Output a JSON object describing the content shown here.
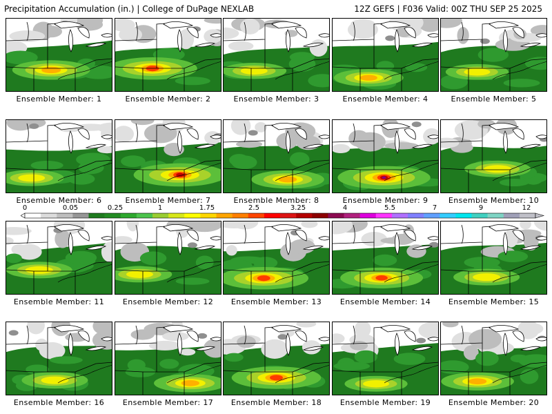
{
  "header": {
    "title": "Precipitation Accumulation (in.) | College of DuPage NEXLAB",
    "run_info": "12Z GEFS | F036 Valid: 00Z THU SEP 25 2025"
  },
  "members": [
    {
      "label": "Ensemble Member: 1",
      "peak": 2.3
    },
    {
      "label": "Ensemble Member: 2",
      "peak": 3.0
    },
    {
      "label": "Ensemble Member: 3",
      "peak": 1.5
    },
    {
      "label": "Ensemble Member: 4",
      "peak": 1.8
    },
    {
      "label": "Ensemble Member: 5",
      "peak": 1.4
    },
    {
      "label": "Ensemble Member: 6",
      "peak": 1.5
    },
    {
      "label": "Ensemble Member: 7",
      "peak": 3.3
    },
    {
      "label": "Ensemble Member: 8",
      "peak": 2.0
    },
    {
      "label": "Ensemble Member: 9",
      "peak": 4.2
    },
    {
      "label": "Ensemble Member: 10",
      "peak": 1.6
    },
    {
      "label": "Ensemble Member: 11",
      "peak": 1.6
    },
    {
      "label": "Ensemble Member: 12",
      "peak": 1.5
    },
    {
      "label": "Ensemble Member: 13",
      "peak": 3.0
    },
    {
      "label": "Ensemble Member: 14",
      "peak": 2.6
    },
    {
      "label": "Ensemble Member: 15",
      "peak": 1.6
    },
    {
      "label": "Ensemble Member: 16",
      "peak": 1.6
    },
    {
      "label": "Ensemble Member: 17",
      "peak": 2.0
    },
    {
      "label": "Ensemble Member: 18",
      "peak": 3.0
    },
    {
      "label": "Ensemble Member: 19",
      "peak": 1.4
    },
    {
      "label": "Ensemble Member: 20",
      "peak": 2.0
    }
  ],
  "colorbar": {
    "labels": [
      "0",
      "0.05",
      "0.25",
      "1",
      "1.75",
      "2.5",
      "3.25",
      "4",
      "5.5",
      "7",
      "9",
      "12"
    ],
    "colors": [
      "#ffffff",
      "#dcdcdc",
      "#bebebe",
      "#969696",
      "#1e7a1e",
      "#228b22",
      "#2ea82e",
      "#4cc34c",
      "#9acd32",
      "#d7e71a",
      "#ffff00",
      "#ffd700",
      "#ffa500",
      "#ff7f00",
      "#ff4500",
      "#ff0000",
      "#dc1414",
      "#b40000",
      "#8b0000",
      "#8b0a50",
      "#b0207d",
      "#dd00dd",
      "#ff33ff",
      "#b070ff",
      "#8080ff",
      "#60a0ff",
      "#33ccff",
      "#00e5ee",
      "#40d0c0",
      "#7fd4c4",
      "#a0a0b8",
      "#c0c0c8"
    ]
  }
}
